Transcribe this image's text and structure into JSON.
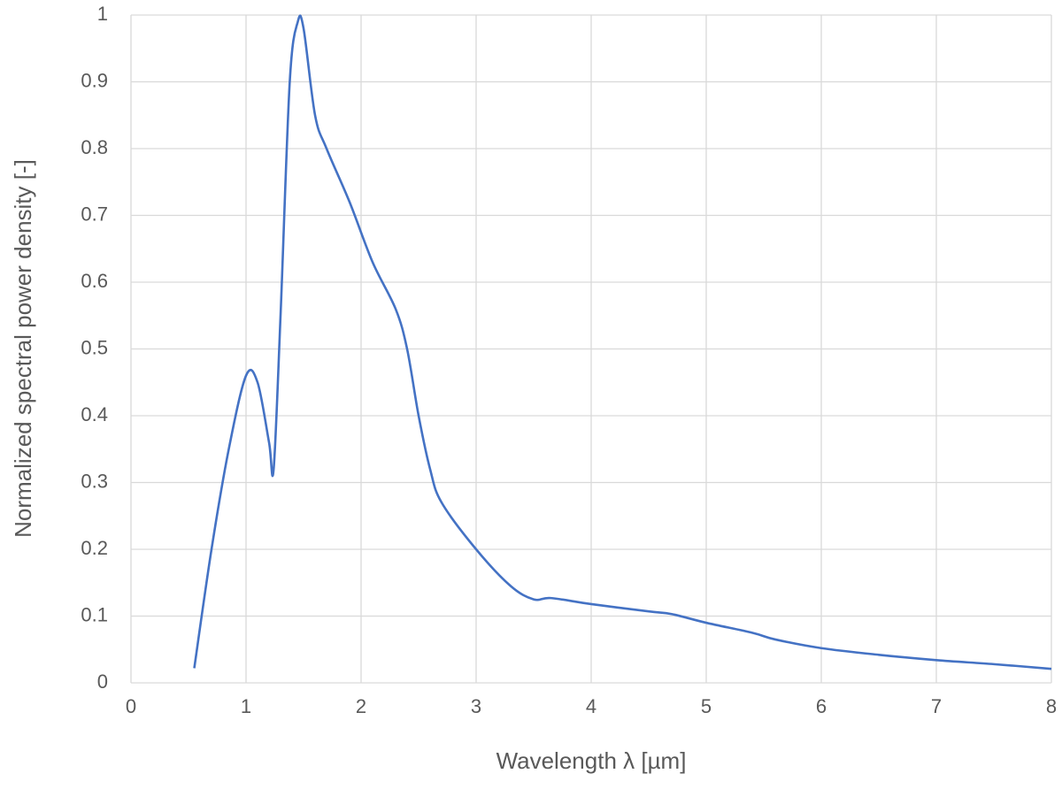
{
  "chart_data": {
    "type": "line",
    "x_label": "Wavelength λ [µm]",
    "y_label": "Normalized spectral power density [-]",
    "xlim": [
      0,
      8
    ],
    "xticks": [
      0,
      1,
      2,
      3,
      4,
      5,
      6,
      7,
      8
    ],
    "ylim": [
      0,
      1
    ],
    "yticks": [
      0,
      0.1,
      0.2,
      0.3,
      0.4,
      0.5,
      0.6,
      0.7,
      0.8,
      0.9,
      1
    ],
    "grid": true,
    "series": [
      {
        "color": "#4472c4",
        "x": [
          0.55,
          0.7,
          0.85,
          1.0,
          1.1,
          1.2,
          1.24,
          1.3,
          1.38,
          1.45,
          1.5,
          1.6,
          1.7,
          1.9,
          2.1,
          2.3,
          2.4,
          2.5,
          2.6,
          2.7,
          3.0,
          3.3,
          3.5,
          3.65,
          4.0,
          4.5,
          4.7,
          5.0,
          5.4,
          5.6,
          6.0,
          6.5,
          7.0,
          7.5,
          8.0
        ],
        "values": [
          0.022,
          0.2,
          0.35,
          0.46,
          0.45,
          0.36,
          0.32,
          0.55,
          0.9,
          0.99,
          0.98,
          0.85,
          0.8,
          0.72,
          0.63,
          0.56,
          0.5,
          0.4,
          0.32,
          0.27,
          0.2,
          0.145,
          0.125,
          0.127,
          0.118,
          0.107,
          0.103,
          0.09,
          0.075,
          0.065,
          0.052,
          0.042,
          0.034,
          0.028,
          0.021
        ]
      }
    ]
  }
}
